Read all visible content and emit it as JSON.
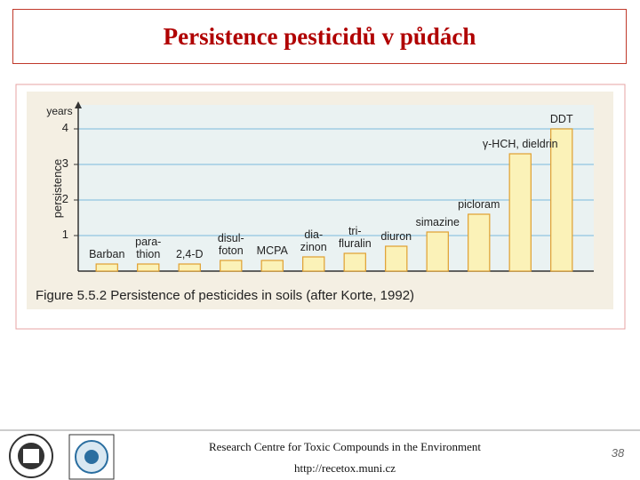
{
  "slide": {
    "title": "Persistence pesticidů v půdách",
    "footer_text": "Research Centre for Toxic Compounds in the Environment",
    "footer_url": "http://recetox.muni.cz",
    "page_number": "38"
  },
  "chart_data": {
    "type": "bar",
    "caption": "Figure 5.5.2 Persistence of pesticides in soils (after Korte, 1992)",
    "y_unit": "years",
    "y_label": "persistence",
    "categories": [
      "Barban",
      "para-\nthion",
      "2,4-D",
      "disul-\nfoton",
      "MCPA",
      "dia-\nzinon",
      "tri-\nfluralin",
      "diuron",
      "simazine",
      "picloram",
      "γ-HCH, dieldrin",
      "DDT"
    ],
    "values": [
      0.2,
      0.2,
      0.2,
      0.3,
      0.3,
      0.4,
      0.5,
      0.7,
      1.1,
      1.6,
      3.3,
      4.0
    ],
    "color": "#fbf2b8",
    "ylim": [
      0,
      4.5
    ],
    "yticks": [
      1,
      2,
      3,
      4
    ],
    "grid": true
  }
}
